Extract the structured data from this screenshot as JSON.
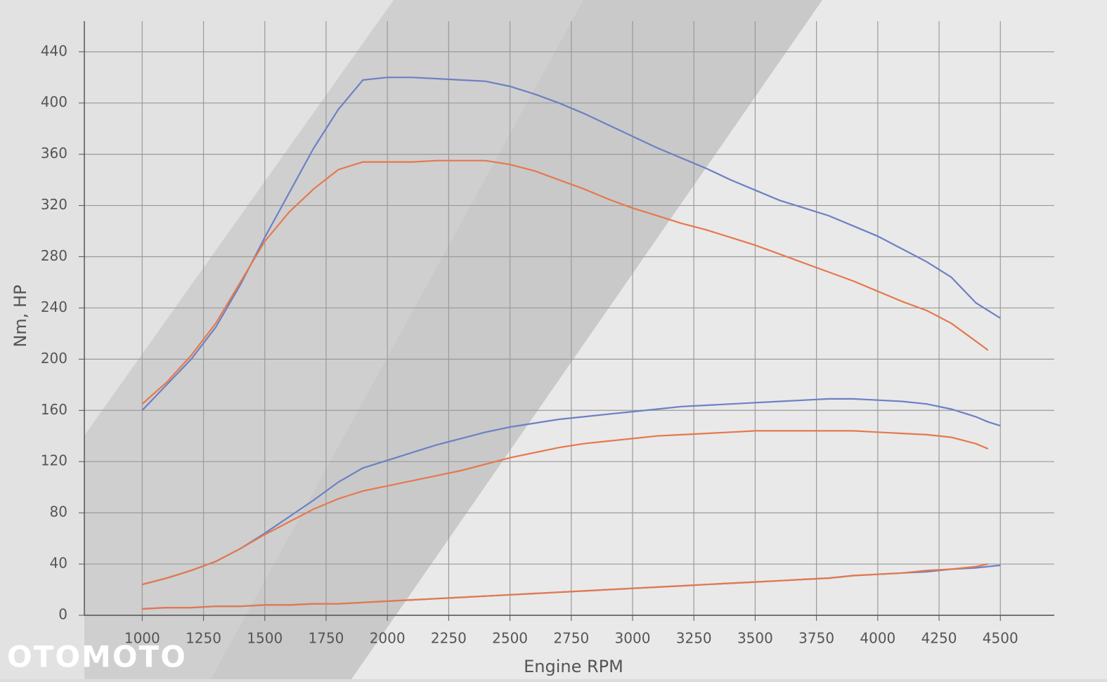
{
  "chart_data": {
    "type": "line",
    "x_label": "Engine RPM",
    "y_label": "Nm, HP",
    "watermark": "OTOMOTO",
    "x": [
      1000,
      1100,
      1200,
      1300,
      1400,
      1500,
      1600,
      1700,
      1800,
      1900,
      2000,
      2100,
      2200,
      2300,
      2400,
      2500,
      2600,
      2700,
      2800,
      2900,
      3000,
      3100,
      3200,
      3300,
      3400,
      3500,
      3600,
      3700,
      3800,
      3900,
      4000,
      4100,
      4200,
      4300,
      4400,
      4450,
      4500
    ],
    "series": [
      {
        "color": "#6d80c4",
        "values": [
          160,
          180,
          200,
          225,
          258,
          295,
          330,
          365,
          395,
          418,
          420,
          420,
          419,
          418,
          417,
          413,
          407,
          400,
          392,
          383,
          374,
          365,
          357,
          349,
          340,
          332,
          324,
          318,
          312,
          304,
          296,
          286,
          276,
          264,
          244,
          238,
          232
        ]
      },
      {
        "color": "#e6784c",
        "values": [
          165,
          182,
          203,
          228,
          260,
          292,
          315,
          333,
          348,
          354,
          354,
          354,
          355,
          355,
          355,
          352,
          347,
          340,
          333,
          325,
          318,
          312,
          306,
          301,
          295,
          289,
          282,
          275,
          268,
          261,
          253,
          245,
          238,
          228,
          214,
          207,
          null
        ]
      },
      {
        "color": "#6d80c4",
        "values": [
          24,
          29,
          35,
          42,
          52,
          64,
          77,
          90,
          104,
          115,
          121,
          127,
          133,
          138,
          143,
          147,
          150,
          153,
          155,
          157,
          159,
          161,
          163,
          164,
          165,
          166,
          167,
          168,
          169,
          169,
          168,
          167,
          165,
          161,
          155,
          151,
          148
        ]
      },
      {
        "color": "#e6784c",
        "values": [
          24,
          29,
          35,
          42,
          52,
          63,
          73,
          83,
          91,
          97,
          101,
          105,
          109,
          113,
          118,
          123,
          127,
          131,
          134,
          136,
          138,
          140,
          141,
          142,
          143,
          144,
          144,
          144,
          144,
          144,
          143,
          142,
          141,
          139,
          134,
          130,
          null
        ]
      },
      {
        "color": "#6d80c4",
        "values": [
          5,
          6,
          6,
          7,
          7,
          8,
          8,
          9,
          9,
          10,
          11,
          12,
          13,
          14,
          15,
          16,
          17,
          18,
          19,
          20,
          21,
          22,
          23,
          24,
          25,
          26,
          27,
          28,
          29,
          31,
          32,
          33,
          34,
          36,
          37,
          38,
          39
        ]
      },
      {
        "color": "#e6784c",
        "values": [
          5,
          6,
          6,
          7,
          7,
          8,
          8,
          9,
          9,
          10,
          11,
          12,
          13,
          14,
          15,
          16,
          17,
          18,
          19,
          20,
          21,
          22,
          23,
          24,
          25,
          26,
          27,
          28,
          29,
          31,
          32,
          33,
          35,
          36,
          38,
          40,
          null
        ]
      }
    ],
    "xlim": [
      764,
      4720
    ],
    "ylim": [
      0,
      464
    ],
    "xticks": [
      1000,
      1250,
      1500,
      1750,
      2000,
      2250,
      2500,
      2750,
      3000,
      3250,
      3500,
      3750,
      4000,
      4250,
      4500
    ],
    "yticks": [
      0,
      40,
      80,
      120,
      160,
      200,
      240,
      280,
      320,
      360,
      400,
      440
    ],
    "grid": true
  }
}
